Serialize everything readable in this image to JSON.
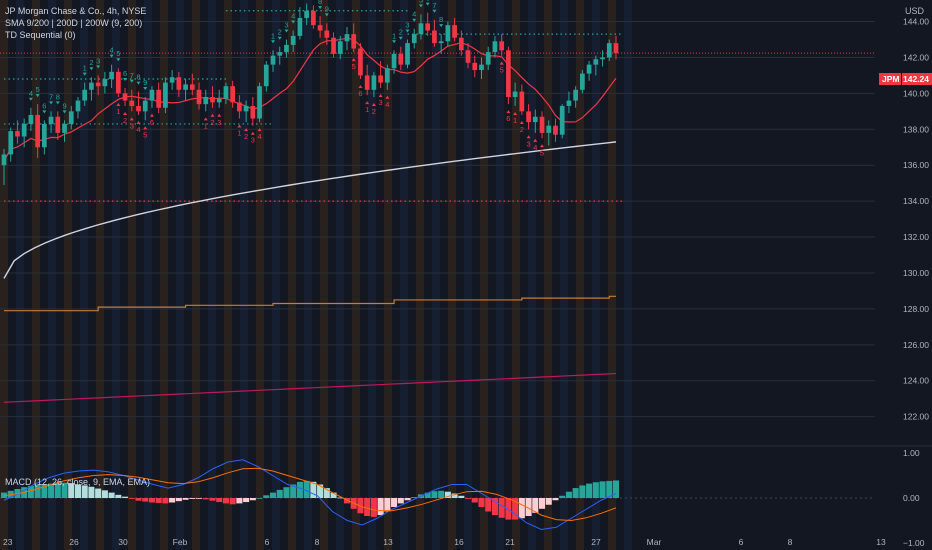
{
  "header": {
    "title": "JP Morgan Chase & Co., 4h, NYSE",
    "indicator_1": "SMA 9/200 | 200D | 200W (9, 200)",
    "indicator_2": "TD Sequential (0)",
    "currency": "USD"
  },
  "price_tag": {
    "symbol": "JPM",
    "value": "142.24",
    "color": "#f23645"
  },
  "macd_legend": "MACD (12, 26, close, 9, EMA, EMA)",
  "colors": {
    "background": "#131722",
    "bull": "#26a69a",
    "bear": "#f23645",
    "sma9": "#f23645",
    "sma200": "#d1d4dc",
    "sma200d": "#c77c3a",
    "sma200w": "#c2185b",
    "macd_line": "#2962ff",
    "signal_line": "#ff6d00",
    "td_buy": "#f23645",
    "td_sell": "#26a69a",
    "band_orange": "#3a2a1a",
    "band_blue": "#1a2540"
  },
  "chart_data": {
    "type": "candlestick",
    "title": "JP Morgan Chase & Co., 4h, NYSE",
    "x_tick_labels": [
      "23",
      "26",
      "30",
      "Feb",
      "6",
      "8",
      "13",
      "16",
      "21",
      "27",
      "Mar",
      "6",
      "8",
      "13"
    ],
    "y_ticks_price": [
      "144.00",
      "142.00",
      "140.00",
      "138.00",
      "136.00",
      "134.00",
      "132.00",
      "130.00",
      "128.00",
      "126.00",
      "124.00",
      "122.00"
    ],
    "y_ticks_macd": [
      "1.00",
      "0.00",
      "−1.00"
    ],
    "ylim_price": [
      120.7,
      145.2
    ],
    "ylim_macd": [
      -1.0,
      1.0
    ],
    "last_price": 142.24,
    "candles": [
      [
        136.0,
        136.9,
        134.9,
        136.6
      ],
      [
        136.6,
        138.1,
        136.2,
        137.9
      ],
      [
        137.9,
        138.5,
        137.2,
        137.6
      ],
      [
        137.6,
        138.6,
        137.0,
        138.3
      ],
      [
        138.3,
        139.2,
        137.9,
        138.8
      ],
      [
        138.8,
        139.4,
        136.4,
        137.0
      ],
      [
        137.0,
        138.5,
        136.6,
        138.3
      ],
      [
        138.3,
        139.0,
        137.8,
        138.7
      ],
      [
        138.7,
        139.0,
        137.4,
        137.8
      ],
      [
        137.8,
        138.5,
        137.3,
        138.3
      ],
      [
        138.3,
        139.3,
        138.0,
        139.0
      ],
      [
        139.0,
        139.8,
        138.6,
        139.6
      ],
      [
        139.6,
        140.6,
        139.3,
        140.2
      ],
      [
        140.2,
        140.9,
        139.6,
        140.6
      ],
      [
        140.6,
        141.0,
        139.9,
        140.4
      ],
      [
        140.4,
        141.2,
        140.0,
        140.8
      ],
      [
        140.8,
        141.6,
        140.3,
        141.2
      ],
      [
        141.2,
        141.4,
        139.8,
        140.0
      ],
      [
        140.0,
        140.3,
        139.3,
        139.6
      ],
      [
        139.6,
        140.2,
        139.0,
        139.3
      ],
      [
        139.3,
        140.1,
        138.8,
        139.0
      ],
      [
        139.0,
        139.8,
        138.5,
        139.6
      ],
      [
        139.6,
        140.4,
        139.2,
        140.2
      ],
      [
        140.2,
        140.6,
        138.9,
        139.2
      ],
      [
        139.2,
        140.9,
        138.9,
        140.6
      ],
      [
        140.6,
        141.3,
        140.2,
        140.9
      ],
      [
        140.9,
        141.2,
        139.8,
        140.2
      ],
      [
        140.2,
        140.8,
        139.6,
        140.5
      ],
      [
        140.5,
        141.1,
        139.9,
        140.2
      ],
      [
        140.2,
        140.6,
        139.1,
        139.4
      ],
      [
        139.4,
        140.2,
        139.0,
        139.8
      ],
      [
        139.8,
        140.4,
        139.2,
        139.5
      ],
      [
        139.5,
        140.2,
        139.2,
        139.7
      ],
      [
        139.7,
        140.6,
        139.4,
        140.4
      ],
      [
        140.4,
        140.7,
        139.2,
        139.5
      ],
      [
        139.5,
        139.9,
        138.6,
        139.0
      ],
      [
        139.0,
        139.6,
        138.4,
        139.3
      ],
      [
        139.3,
        139.8,
        138.2,
        138.6
      ],
      [
        138.6,
        140.6,
        138.4,
        140.4
      ],
      [
        140.4,
        141.8,
        140.1,
        141.6
      ],
      [
        141.6,
        142.4,
        141.2,
        142.1
      ],
      [
        142.1,
        142.6,
        141.6,
        142.3
      ],
      [
        142.3,
        143.0,
        142.0,
        142.7
      ],
      [
        142.7,
        143.5,
        142.3,
        143.2
      ],
      [
        143.2,
        144.8,
        143.0,
        144.2
      ],
      [
        144.2,
        145.0,
        143.8,
        144.6
      ],
      [
        144.6,
        144.9,
        143.6,
        143.8
      ],
      [
        143.8,
        144.3,
        143.1,
        143.5
      ],
      [
        143.5,
        143.9,
        142.7,
        143.1
      ],
      [
        143.1,
        143.4,
        142.0,
        142.2
      ],
      [
        142.2,
        143.2,
        141.9,
        142.9
      ],
      [
        142.9,
        143.7,
        142.4,
        143.3
      ],
      [
        143.3,
        143.9,
        142.3,
        142.5
      ],
      [
        142.5,
        142.8,
        140.8,
        141.0
      ],
      [
        141.0,
        141.6,
        139.9,
        140.2
      ],
      [
        140.2,
        141.2,
        139.8,
        141.0
      ],
      [
        141.0,
        141.8,
        140.3,
        140.6
      ],
      [
        140.6,
        141.6,
        140.2,
        141.4
      ],
      [
        141.4,
        142.4,
        141.1,
        142.2
      ],
      [
        142.2,
        142.6,
        141.3,
        141.6
      ],
      [
        141.6,
        143.0,
        141.4,
        142.8
      ],
      [
        142.8,
        143.6,
        142.5,
        143.3
      ],
      [
        143.3,
        144.4,
        143.0,
        143.9
      ],
      [
        143.9,
        144.5,
        143.2,
        143.5
      ],
      [
        143.5,
        144.1,
        142.6,
        142.8
      ],
      [
        142.8,
        143.3,
        142.2,
        142.9
      ],
      [
        142.9,
        144.0,
        142.6,
        143.8
      ],
      [
        143.8,
        144.2,
        142.9,
        143.1
      ],
      [
        143.1,
        143.5,
        142.1,
        142.4
      ],
      [
        142.4,
        142.8,
        141.4,
        141.7
      ],
      [
        141.7,
        142.1,
        140.9,
        141.3
      ],
      [
        141.3,
        142.0,
        140.8,
        141.6
      ],
      [
        141.6,
        142.6,
        141.3,
        142.3
      ],
      [
        142.3,
        143.2,
        142.0,
        142.9
      ],
      [
        142.9,
        143.3,
        142.1,
        142.4
      ],
      [
        142.4,
        142.6,
        139.4,
        139.8
      ],
      [
        139.8,
        140.6,
        139.3,
        140.1
      ],
      [
        140.1,
        140.5,
        138.8,
        139.0
      ],
      [
        139.0,
        139.4,
        138.0,
        138.4
      ],
      [
        138.4,
        139.1,
        137.8,
        138.7
      ],
      [
        138.7,
        139.0,
        137.5,
        137.8
      ],
      [
        137.8,
        138.5,
        137.1,
        138.2
      ],
      [
        138.2,
        138.6,
        137.3,
        137.7
      ],
      [
        137.7,
        139.4,
        137.5,
        139.3
      ],
      [
        139.3,
        140.1,
        138.9,
        139.6
      ],
      [
        139.6,
        140.4,
        139.2,
        140.2
      ],
      [
        140.2,
        141.3,
        140.0,
        141.1
      ],
      [
        141.1,
        141.8,
        140.7,
        141.6
      ],
      [
        141.6,
        142.1,
        141.0,
        141.9
      ],
      [
        141.9,
        142.4,
        141.5,
        142.0
      ],
      [
        142.0,
        143.0,
        141.8,
        142.8
      ],
      [
        142.8,
        143.2,
        141.9,
        142.24
      ]
    ],
    "sma9_ends": [
      135.4,
      141.1
    ],
    "sma200_ends": [
      129.7,
      137.3
    ],
    "sma200d_ends": [
      127.9,
      128.7
    ],
    "sma200w_ends": [
      122.8,
      124.4
    ],
    "macd_histogram": [
      0.12,
      0.16,
      0.2,
      0.24,
      0.27,
      0.3,
      0.31,
      0.32,
      0.34,
      0.34,
      0.33,
      0.3,
      0.28,
      0.25,
      0.21,
      0.17,
      0.12,
      0.07,
      0.03,
      -0.02,
      -0.06,
      -0.08,
      -0.1,
      -0.11,
      -0.12,
      -0.1,
      -0.07,
      -0.04,
      -0.02,
      -0.01,
      -0.03,
      -0.06,
      -0.09,
      -0.12,
      -0.14,
      -0.12,
      -0.09,
      -0.05,
      0.0,
      0.06,
      0.12,
      0.18,
      0.24,
      0.3,
      0.36,
      0.38,
      0.36,
      0.3,
      0.22,
      0.12,
      0.01,
      -0.12,
      -0.24,
      -0.34,
      -0.4,
      -0.42,
      -0.38,
      -0.3,
      -0.2,
      -0.12,
      -0.05,
      0.02,
      0.08,
      0.12,
      0.15,
      0.16,
      0.14,
      0.1,
      0.05,
      -0.02,
      -0.1,
      -0.2,
      -0.3,
      -0.38,
      -0.44,
      -0.48,
      -0.48,
      -0.45,
      -0.4,
      -0.33,
      -0.24,
      -0.15,
      -0.05,
      0.05,
      0.14,
      0.22,
      0.28,
      0.32,
      0.35,
      0.37,
      0.38,
      0.39
    ],
    "macd_line": [
      -0.05,
      0.1,
      0.3,
      0.45,
      0.55,
      0.6,
      0.62,
      0.58,
      0.5,
      0.4,
      0.3,
      0.22,
      0.3,
      0.45,
      0.65,
      0.8,
      0.85,
      0.7,
      0.5,
      0.3,
      0.2,
      0.05,
      -0.3,
      -0.5,
      -0.6,
      -0.45,
      -0.25,
      -0.1,
      0.05,
      0.2,
      0.3,
      0.3,
      0.1,
      -0.1,
      -0.3,
      -0.55,
      -0.7,
      -0.65,
      -0.45,
      -0.25,
      -0.05,
      0.1
    ],
    "signal_line": [
      0.05,
      0.1,
      0.18,
      0.28,
      0.38,
      0.45,
      0.5,
      0.52,
      0.5,
      0.46,
      0.4,
      0.34,
      0.32,
      0.36,
      0.45,
      0.56,
      0.65,
      0.66,
      0.6,
      0.5,
      0.4,
      0.3,
      0.12,
      -0.05,
      -0.2,
      -0.28,
      -0.28,
      -0.22,
      -0.14,
      -0.04,
      0.06,
      0.14,
      0.15,
      0.08,
      -0.04,
      -0.2,
      -0.38,
      -0.48,
      -0.5,
      -0.44,
      -0.34,
      -0.22
    ],
    "td_sell_labels": [
      "4",
      "5",
      "6",
      "7",
      "8",
      "9",
      "1",
      "2",
      "3",
      "4",
      "5",
      "6",
      "7",
      "8",
      "9",
      "1",
      "2",
      "3",
      "4",
      "5",
      "6",
      "7",
      "8",
      "9",
      "1",
      "2",
      "3",
      "4",
      "5",
      "6",
      "7",
      "8"
    ],
    "td_buy_labels": [
      "1",
      "2",
      "3",
      "4",
      "5",
      "6",
      "1",
      "2",
      "3",
      "1",
      "2",
      "3",
      "4",
      "5",
      "6",
      "1",
      "2",
      "3",
      "4",
      "5",
      "6",
      "1",
      "2",
      "3",
      "4",
      "5"
    ]
  }
}
